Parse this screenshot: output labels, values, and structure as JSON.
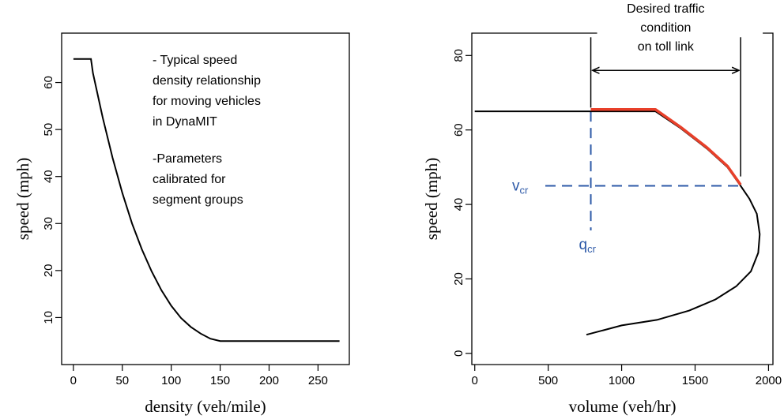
{
  "chart_data": [
    {
      "type": "line",
      "xlabel": "density (veh/mile)",
      "ylabel": "speed (mph)",
      "xlim": [
        -12,
        282
      ],
      "ylim": [
        0,
        70.5
      ],
      "xticks": [
        0,
        50,
        100,
        150,
        200,
        250
      ],
      "yticks": [
        10,
        20,
        30,
        40,
        50,
        60
      ],
      "grid": false,
      "annotations": [
        "- Typical speed",
        "density relationship",
        "for moving vehicles",
        "in DynaMIT",
        "-Parameters",
        "calibrated for",
        "segment groups"
      ],
      "series": [
        {
          "color": "#000000",
          "x": [
            0,
            18,
            20,
            30,
            40,
            50,
            60,
            70,
            80,
            90,
            100,
            110,
            120,
            130,
            140,
            150,
            200,
            250,
            272
          ],
          "y": [
            65,
            65,
            62,
            52.5,
            44,
            36.5,
            30,
            24.5,
            19.8,
            15.8,
            12.5,
            9.9,
            8,
            6.6,
            5.5,
            5,
            5,
            5,
            5
          ]
        }
      ]
    },
    {
      "type": "line",
      "xlabel": "volume (veh/hr)",
      "ylabel": "speed (mph)",
      "xlim": [
        -20,
        2030
      ],
      "ylim": [
        -3,
        86
      ],
      "xticks": [
        0,
        500,
        1000,
        1500,
        2000
      ],
      "yticks": [
        0,
        20,
        40,
        60,
        80
      ],
      "grid": false,
      "series": [
        {
          "color": "#000000",
          "x": [
            0,
            500,
            790,
            1230,
            1400,
            1580,
            1720,
            1810,
            1870,
            1920,
            1940,
            1930,
            1880,
            1780,
            1640,
            1460,
            1240,
            1000,
            760
          ],
          "y": [
            65,
            65,
            65,
            65,
            60.5,
            55,
            50,
            45,
            41.5,
            37.5,
            32,
            27,
            22,
            18,
            14.5,
            11.5,
            9,
            7.5,
            5
          ]
        },
        {
          "color": "#e8402a",
          "x": [
            790,
            1230,
            1400,
            1580,
            1720,
            1810
          ],
          "y": [
            65.5,
            65.5,
            60.8,
            55.3,
            50.3,
            45.3
          ]
        }
      ],
      "annotations": {
        "desired_label": [
          "Desired traffic",
          "condition",
          "on toll link"
        ],
        "range_x": [
          790,
          1810
        ],
        "range_y": 76,
        "range_top_y": 87,
        "v_cr_label": "v",
        "v_cr_sub": "cr",
        "v_cr": 45,
        "q_cr_label": "q",
        "q_cr_sub": "cr",
        "q_cr": 790
      },
      "colors": {
        "reference_lines": "#2e5aa8"
      }
    }
  ]
}
